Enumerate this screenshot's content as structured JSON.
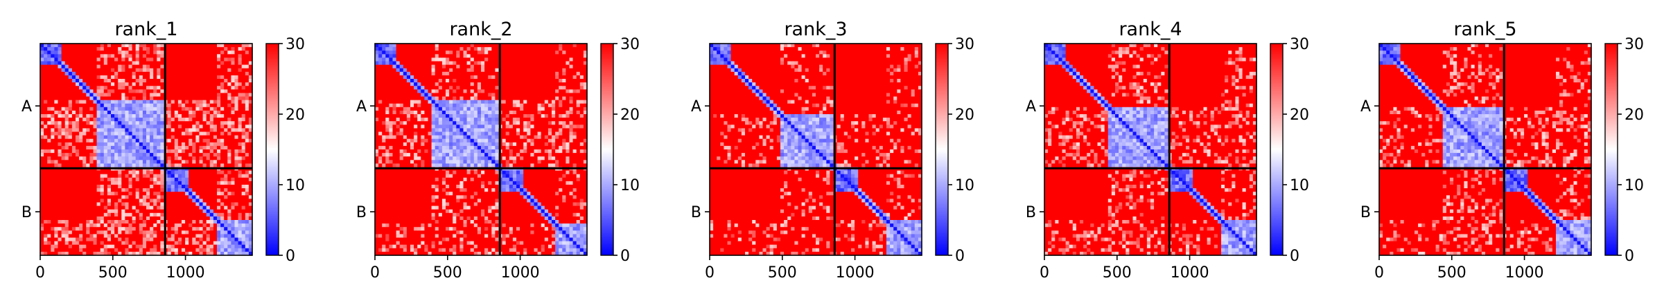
{
  "chart_data": [
    {
      "type": "heatmap",
      "title": "rank_1",
      "x": {
        "ticks": [
          0,
          500,
          1000
        ],
        "tick_labels": [
          "0",
          "500",
          "1000"
        ],
        "range": [
          0,
          1460
        ]
      },
      "y": {
        "tick_labels": [
          "A",
          "B"
        ],
        "range": [
          0,
          1460
        ]
      },
      "chains": [
        {
          "name": "A",
          "start": 0,
          "end": 860
        },
        {
          "name": "B",
          "start": 860,
          "end": 1460
        }
      ],
      "colorbar": {
        "range": [
          0,
          30
        ],
        "ticks": [
          0,
          10,
          20,
          30
        ],
        "tick_labels": [
          "0",
          "10",
          "20",
          "30"
        ],
        "colors": [
          "#0000ff",
          "#ffffff",
          "#ff0000"
        ]
      },
      "low_error_blocks": [
        {
          "x": [
            0,
            150
          ],
          "y": [
            0,
            150
          ],
          "level": 3
        },
        {
          "x": [
            380,
            860
          ],
          "y": [
            380,
            860
          ],
          "level": 6
        },
        {
          "x": [
            860,
            1020
          ],
          "y": [
            860,
            1020
          ],
          "level": 3
        },
        {
          "x": [
            1210,
            1460
          ],
          "y": [
            1210,
            1460
          ],
          "level": 6
        }
      ],
      "light_bands": [
        {
          "from": 380,
          "to": 860,
          "strength": 0.45
        },
        {
          "from": 1210,
          "to": 1460,
          "strength": 0.4
        }
      ]
    },
    {
      "type": "heatmap",
      "title": "rank_2",
      "x": {
        "ticks": [
          0,
          500,
          1000
        ],
        "tick_labels": [
          "0",
          "500",
          "1000"
        ],
        "range": [
          0,
          1460
        ]
      },
      "y": {
        "tick_labels": [
          "A",
          "B"
        ],
        "range": [
          0,
          1460
        ]
      },
      "chains": [
        {
          "name": "A",
          "start": 0,
          "end": 860
        },
        {
          "name": "B",
          "start": 860,
          "end": 1460
        }
      ],
      "colorbar": {
        "range": [
          0,
          30
        ],
        "ticks": [
          0,
          10,
          20,
          30
        ],
        "tick_labels": [
          "0",
          "10",
          "20",
          "30"
        ],
        "colors": [
          "#0000ff",
          "#ffffff",
          "#ff0000"
        ]
      },
      "low_error_blocks": [
        {
          "x": [
            0,
            150
          ],
          "y": [
            0,
            150
          ],
          "level": 3
        },
        {
          "x": [
            400,
            860
          ],
          "y": [
            400,
            860
          ],
          "level": 6
        },
        {
          "x": [
            860,
            1030
          ],
          "y": [
            860,
            1030
          ],
          "level": 3
        },
        {
          "x": [
            1230,
            1460
          ],
          "y": [
            1230,
            1460
          ],
          "level": 6
        }
      ],
      "light_bands": [
        {
          "from": 400,
          "to": 860,
          "strength": 0.3
        },
        {
          "from": 1230,
          "to": 1460,
          "strength": 0.25
        }
      ]
    },
    {
      "type": "heatmap",
      "title": "rank_3",
      "x": {
        "ticks": [
          0,
          500,
          1000
        ],
        "tick_labels": [
          "0",
          "500",
          "1000"
        ],
        "range": [
          0,
          1460
        ]
      },
      "y": {
        "tick_labels": [
          "A",
          "B"
        ],
        "range": [
          0,
          1460
        ]
      },
      "chains": [
        {
          "name": "A",
          "start": 0,
          "end": 860
        },
        {
          "name": "B",
          "start": 860,
          "end": 1460
        }
      ],
      "colorbar": {
        "range": [
          0,
          30
        ],
        "ticks": [
          0,
          10,
          20,
          30
        ],
        "tick_labels": [
          "0",
          "10",
          "20",
          "30"
        ],
        "colors": [
          "#0000ff",
          "#ffffff",
          "#ff0000"
        ]
      },
      "low_error_blocks": [
        {
          "x": [
            0,
            150
          ],
          "y": [
            0,
            150
          ],
          "level": 3
        },
        {
          "x": [
            480,
            860
          ],
          "y": [
            480,
            860
          ],
          "level": 6
        },
        {
          "x": [
            860,
            1020
          ],
          "y": [
            860,
            1020
          ],
          "level": 3
        },
        {
          "x": [
            1210,
            1460
          ],
          "y": [
            1210,
            1460
          ],
          "level": 6
        }
      ],
      "light_bands": [
        {
          "from": 480,
          "to": 860,
          "strength": 0.2
        },
        {
          "from": 1210,
          "to": 1460,
          "strength": 0.2
        }
      ]
    },
    {
      "type": "heatmap",
      "title": "rank_4",
      "x": {
        "ticks": [
          0,
          500,
          1000
        ],
        "tick_labels": [
          "0",
          "500",
          "1000"
        ],
        "range": [
          0,
          1460
        ]
      },
      "y": {
        "tick_labels": [
          "A",
          "B"
        ],
        "range": [
          0,
          1460
        ]
      },
      "chains": [
        {
          "name": "A",
          "start": 0,
          "end": 860
        },
        {
          "name": "B",
          "start": 860,
          "end": 1460
        }
      ],
      "colorbar": {
        "range": [
          0,
          30
        ],
        "ticks": [
          0,
          10,
          20,
          30
        ],
        "tick_labels": [
          "0",
          "10",
          "20",
          "30"
        ],
        "colors": [
          "#0000ff",
          "#ffffff",
          "#ff0000"
        ]
      },
      "low_error_blocks": [
        {
          "x": [
            0,
            150
          ],
          "y": [
            0,
            150
          ],
          "level": 3
        },
        {
          "x": [
            440,
            860
          ],
          "y": [
            440,
            860
          ],
          "level": 6
        },
        {
          "x": [
            860,
            1020
          ],
          "y": [
            860,
            1020
          ],
          "level": 3
        },
        {
          "x": [
            1210,
            1460
          ],
          "y": [
            1210,
            1460
          ],
          "level": 6
        }
      ],
      "light_bands": [
        {
          "from": 440,
          "to": 860,
          "strength": 0.3
        },
        {
          "from": 1210,
          "to": 1460,
          "strength": 0.25
        }
      ]
    },
    {
      "type": "heatmap",
      "title": "rank_5",
      "x": {
        "ticks": [
          0,
          500,
          1000
        ],
        "tick_labels": [
          "0",
          "500",
          "1000"
        ],
        "range": [
          0,
          1460
        ]
      },
      "y": {
        "tick_labels": [
          "A",
          "B"
        ],
        "range": [
          0,
          1460
        ]
      },
      "chains": [
        {
          "name": "A",
          "start": 0,
          "end": 860
        },
        {
          "name": "B",
          "start": 860,
          "end": 1460
        }
      ],
      "colorbar": {
        "range": [
          0,
          30
        ],
        "ticks": [
          0,
          10,
          20,
          30
        ],
        "tick_labels": [
          "0",
          "10",
          "20",
          "30"
        ],
        "colors": [
          "#0000ff",
          "#ffffff",
          "#ff0000"
        ]
      },
      "low_error_blocks": [
        {
          "x": [
            0,
            150
          ],
          "y": [
            0,
            150
          ],
          "level": 3
        },
        {
          "x": [
            440,
            860
          ],
          "y": [
            440,
            860
          ],
          "level": 6
        },
        {
          "x": [
            860,
            1020
          ],
          "y": [
            860,
            1020
          ],
          "level": 3
        },
        {
          "x": [
            1210,
            1460
          ],
          "y": [
            1210,
            1460
          ],
          "level": 6
        }
      ],
      "light_bands": [
        {
          "from": 440,
          "to": 860,
          "strength": 0.3
        },
        {
          "from": 1210,
          "to": 1460,
          "strength": 0.25
        }
      ]
    }
  ]
}
